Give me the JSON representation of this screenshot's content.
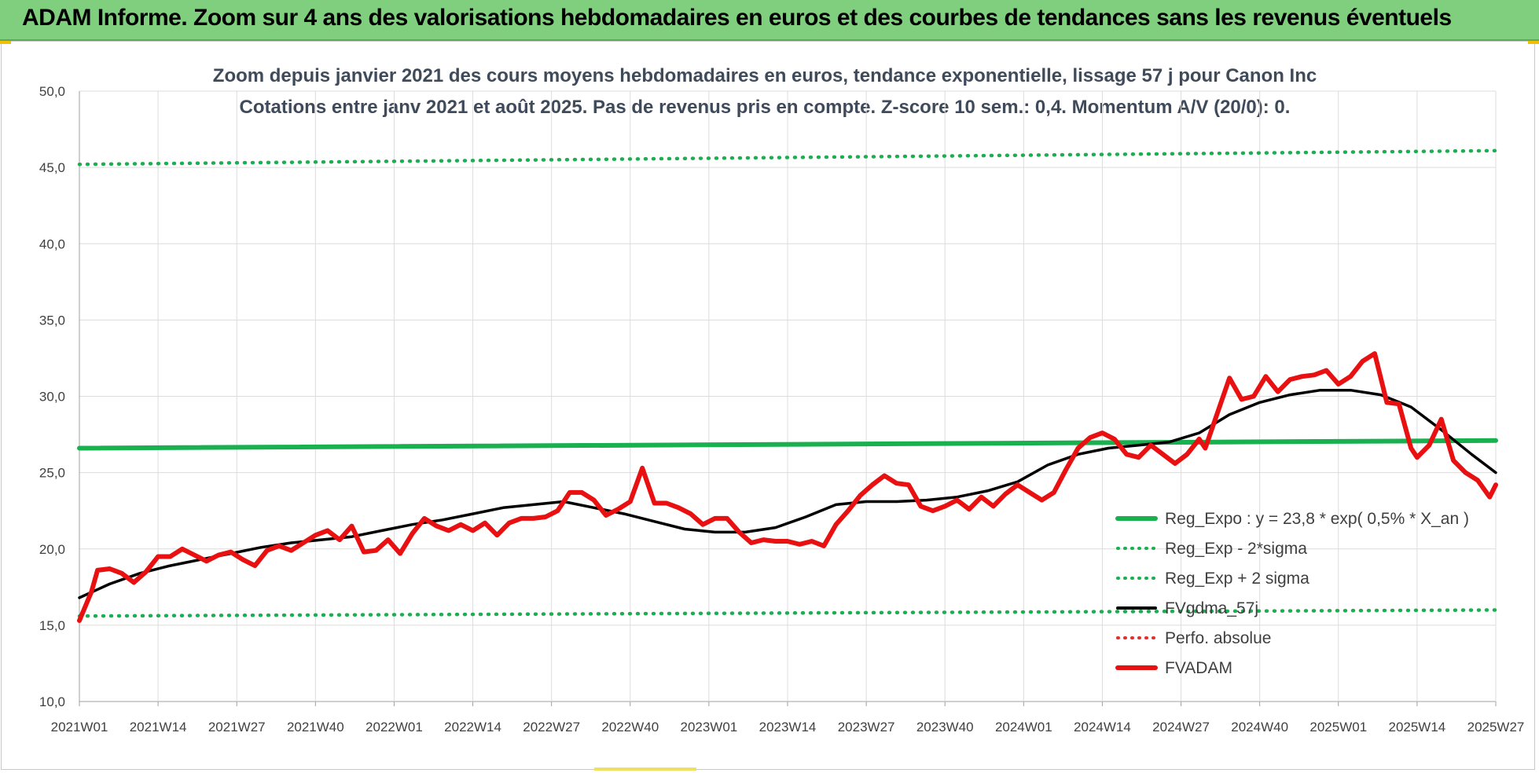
{
  "header": {
    "title": "ADAM Informe. Zoom sur 4 ans des valorisations hebdomadaires en euros et des courbes de tendances sans les revenus éventuels"
  },
  "colors": {
    "header_bg": "#7fcf7f",
    "green": "#19b050",
    "black": "#000000",
    "red": "#e81010",
    "red_dotted": "#e03030"
  },
  "chart_data": {
    "type": "line",
    "title": "Zoom depuis janvier 2021 des cours moyens hebdomadaires en euros, tendance exponentielle, lissage 57 j pour Canon Inc",
    "subtitle": "Cotations entre janv 2021 et août 2025.  Pas de revenus pris en compte. Z-score 10 sem.: 0,4. Momentum A/V (20/0): 0.",
    "ylim": [
      10,
      50
    ],
    "yticks": [
      "50,0",
      "45,0",
      "40,0",
      "35,0",
      "30,0",
      "25,0",
      "20,0",
      "15,0",
      "10,0"
    ],
    "xticks": [
      "2021W01",
      "2021W14",
      "2021W27",
      "2021W40",
      "2022W01",
      "2022W14",
      "2022W27",
      "2022W40",
      "2023W01",
      "2023W14",
      "2023W27",
      "2023W40",
      "2024W01",
      "2024W14",
      "2024W27",
      "2024W40",
      "2025W01",
      "2025W14",
      "2025W27"
    ],
    "grid": true,
    "legend_position": "bottom-right",
    "series": [
      {
        "name": "Reg_Expo : y = 23,8 * exp( 0,5% *  X_an )",
        "style": "solid",
        "color": "#19b050",
        "x": [
          0,
          234
        ],
        "values": [
          26.6,
          27.1
        ]
      },
      {
        "name": "Reg_Exp - 2*sigma",
        "style": "dotted",
        "color": "#19b050",
        "x": [
          0,
          234
        ],
        "values": [
          15.6,
          16.0
        ]
      },
      {
        "name": "Reg_Exp + 2 sigma",
        "style": "dotted",
        "color": "#19b050",
        "x": [
          0,
          234
        ],
        "values": [
          45.2,
          46.1
        ]
      },
      {
        "name": "FVgdma_57j",
        "style": "solid",
        "color": "#000000",
        "x": [
          0,
          5,
          10,
          15,
          20,
          25,
          30,
          35,
          40,
          45,
          50,
          55,
          60,
          65,
          70,
          75,
          80,
          85,
          90,
          95,
          100,
          105,
          110,
          115,
          120,
          125,
          130,
          135,
          140,
          145,
          150,
          155,
          160,
          165,
          170,
          175,
          180,
          185,
          190,
          195,
          200,
          205,
          210,
          215,
          220,
          225,
          230,
          234
        ],
        "values": [
          16.8,
          17.7,
          18.4,
          18.9,
          19.3,
          19.7,
          20.1,
          20.4,
          20.6,
          20.8,
          21.2,
          21.6,
          21.9,
          22.3,
          22.7,
          22.9,
          23.1,
          22.7,
          22.3,
          21.8,
          21.3,
          21.1,
          21.1,
          21.4,
          22.1,
          22.9,
          23.1,
          23.1,
          23.2,
          23.4,
          23.8,
          24.4,
          25.5,
          26.2,
          26.6,
          26.8,
          27.0,
          27.6,
          28.8,
          29.6,
          30.1,
          30.4,
          30.4,
          30.1,
          29.3,
          27.8,
          26.2,
          25.0
        ]
      },
      {
        "name": "Perfo. absolue",
        "style": "dotted",
        "color": "#e03030",
        "x": [],
        "values": []
      },
      {
        "name": "FVADAM",
        "style": "solid",
        "color": "#e81010",
        "x": [
          0,
          2,
          3,
          5,
          7,
          9,
          11,
          13,
          15,
          17,
          19,
          21,
          23,
          25,
          27,
          29,
          31,
          33,
          35,
          37,
          39,
          41,
          43,
          45,
          47,
          49,
          51,
          53,
          55,
          57,
          59,
          61,
          63,
          65,
          67,
          69,
          71,
          73,
          75,
          77,
          79,
          81,
          83,
          85,
          87,
          89,
          91,
          93,
          95,
          97,
          99,
          101,
          103,
          105,
          107,
          109,
          111,
          113,
          115,
          117,
          119,
          121,
          123,
          125,
          127,
          129,
          131,
          133,
          135,
          137,
          139,
          141,
          143,
          145,
          147,
          149,
          151,
          153,
          155,
          157,
          159,
          161,
          163,
          165,
          167,
          169,
          171,
          173,
          175,
          177,
          179,
          181,
          183,
          185,
          186,
          188,
          190,
          192,
          194,
          196,
          198,
          200,
          202,
          204,
          206,
          208,
          210,
          212,
          214,
          216,
          218,
          220,
          221,
          223,
          225,
          227,
          229,
          231,
          233,
          234
        ],
        "values": [
          15.3,
          17.2,
          18.6,
          18.7,
          18.4,
          17.8,
          18.5,
          19.5,
          19.5,
          20.0,
          19.6,
          19.2,
          19.6,
          19.8,
          19.3,
          18.9,
          19.9,
          20.2,
          19.9,
          20.4,
          20.9,
          21.2,
          20.6,
          21.5,
          19.8,
          19.9,
          20.6,
          19.7,
          21.0,
          22.0,
          21.5,
          21.2,
          21.6,
          21.2,
          21.7,
          20.9,
          21.7,
          22.0,
          22.0,
          22.1,
          22.5,
          23.7,
          23.7,
          23.2,
          22.2,
          22.6,
          23.1,
          25.3,
          23.0,
          23.0,
          22.7,
          22.3,
          21.6,
          22.0,
          22.0,
          21.1,
          20.4,
          20.6,
          20.5,
          20.5,
          20.3,
          20.5,
          20.2,
          21.6,
          22.5,
          23.5,
          24.2,
          24.8,
          24.3,
          24.2,
          22.8,
          22.5,
          22.8,
          23.2,
          22.6,
          23.4,
          22.8,
          23.6,
          24.2,
          23.7,
          23.2,
          23.7,
          25.2,
          26.6,
          27.3,
          27.6,
          27.2,
          26.2,
          26.0,
          26.8,
          26.2,
          25.6,
          26.2,
          27.2,
          26.6,
          28.9,
          31.2,
          29.8,
          30.0,
          31.3,
          30.3,
          31.1,
          31.3,
          31.4,
          31.7,
          30.8,
          31.3,
          32.3,
          32.8,
          29.6,
          29.5,
          26.6,
          26.0,
          26.8,
          28.5,
          25.8,
          25.0,
          24.5,
          23.4,
          24.2
        ]
      }
    ]
  }
}
